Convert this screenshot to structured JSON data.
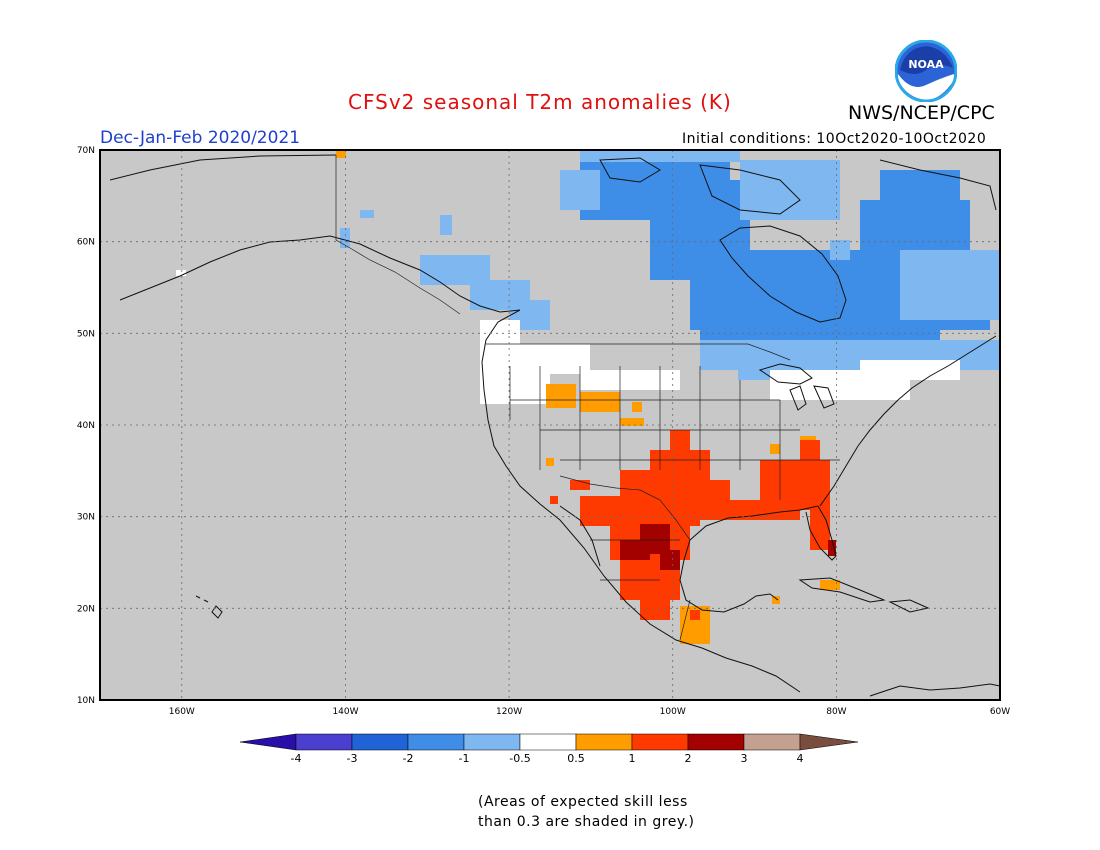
{
  "header": {
    "title": "CFSv2 seasonal T2m anomalies (K)",
    "agency": "NWS/NCEP/CPC",
    "season": "Dec-Jan-Feb 2020/2021",
    "initial_conditions": "Initial conditions: 10Oct2020-10Oct2020",
    "logo_text": "NOAA"
  },
  "map": {
    "lat_labels": [
      "70N",
      "60N",
      "50N",
      "40N",
      "30N",
      "20N",
      "10N"
    ],
    "lon_labels": [
      "160W",
      "140W",
      "120W",
      "100W",
      "80W",
      "60W"
    ],
    "background_grey": "#c8c8c8"
  },
  "colorbar": {
    "labels": [
      "-4",
      "-3",
      "-2",
      "-1",
      "-0.5",
      "0.5",
      "1",
      "2",
      "3",
      "4"
    ],
    "colors": [
      "#2a0ea8",
      "#4b3fd0",
      "#1f63d6",
      "#3e8ee8",
      "#7fb8f0",
      "#ffffff",
      "#ff9d00",
      "#ff3a00",
      "#a30000",
      "#c4a091",
      "#7a4e3e"
    ]
  },
  "note": {
    "line1": "(Areas of expected skill less",
    "line2": "than 0.3 are shaded in grey.)"
  }
}
